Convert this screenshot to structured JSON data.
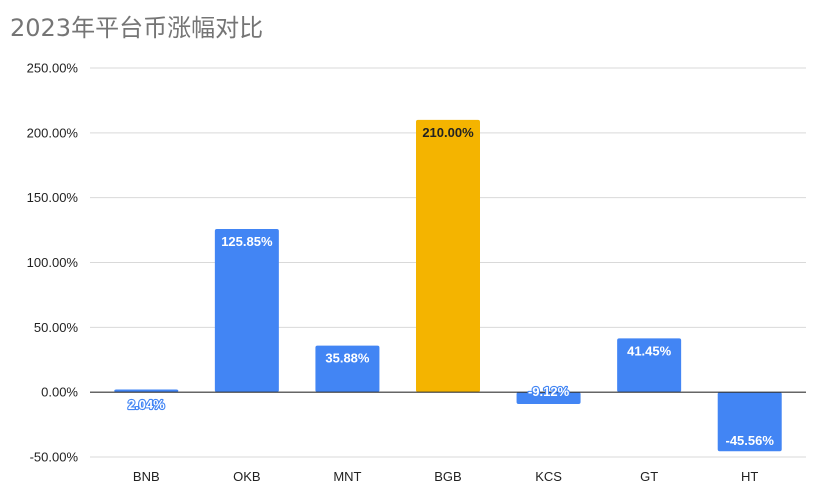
{
  "chart_data": {
    "type": "bar",
    "title": "2023年平台币涨幅对比",
    "xlabel": "",
    "ylabel": "",
    "ylim": [
      -50,
      250
    ],
    "yticks": [
      250,
      200,
      150,
      100,
      50,
      0,
      -50
    ],
    "ytick_labels": [
      "250.00%",
      "200.00%",
      "150.00%",
      "100.00%",
      "50.00%",
      "0.00%",
      "-50.00%"
    ],
    "grid": true,
    "categories": [
      "BNB",
      "OKB",
      "MNT",
      "BGB",
      "KCS",
      "GT",
      "HT"
    ],
    "values": [
      2.04,
      125.85,
      35.88,
      210.0,
      -9.12,
      41.45,
      -45.56
    ],
    "value_labels": [
      "2.04%",
      "125.85%",
      "35.88%",
      "210.00%",
      "-9.12%",
      "41.45%",
      "-45.56%"
    ],
    "colors": {
      "default_bar": "#4285f4",
      "highlight_bar": "#f4b400",
      "highlight_category": "BGB",
      "grid": "#d9d9d9",
      "zero_line": "#333333"
    }
  }
}
